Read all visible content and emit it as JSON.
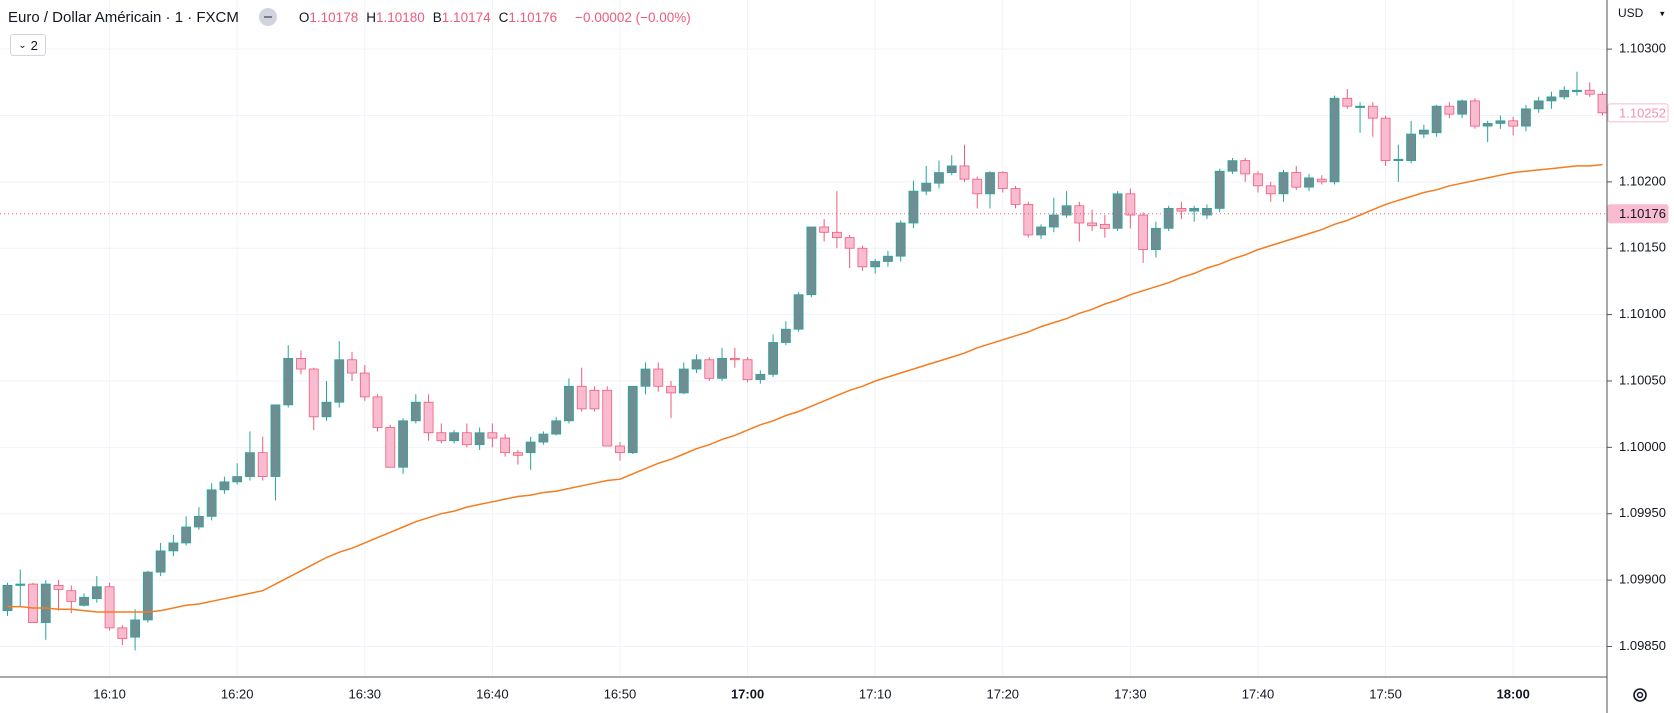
{
  "header": {
    "symbol": "Euro / Dollar Américain · 1 · FXCM",
    "ohlc": [
      {
        "label": "O",
        "value": "1.10178"
      },
      {
        "label": "H",
        "value": "1.10180"
      },
      {
        "label": "B",
        "value": "1.10174"
      },
      {
        "label": "C",
        "value": "1.10176"
      }
    ],
    "change": "−0.00002 (−0.00%)",
    "indicators": "2"
  },
  "chart_data": {
    "type": "candlestick",
    "currency": "USD",
    "categories": [
      null,
      null,
      null,
      null,
      null,
      null,
      null,
      null,
      "16:10",
      null,
      null,
      null,
      null,
      null,
      null,
      null,
      null,
      null,
      "16:20",
      null,
      null,
      null,
      null,
      null,
      null,
      null,
      null,
      null,
      "16:30",
      null,
      null,
      null,
      null,
      null,
      null,
      null,
      null,
      null,
      "16:40",
      null,
      null,
      null,
      null,
      null,
      null,
      null,
      null,
      null,
      "16:50",
      null,
      null,
      null,
      null,
      null,
      null,
      null,
      null,
      null,
      "17:00",
      null,
      null,
      null,
      null,
      null,
      null,
      null,
      null,
      null,
      "17:10",
      null,
      null,
      null,
      null,
      null,
      null,
      null,
      null,
      null,
      "17:20",
      null,
      null,
      null,
      null,
      null,
      null,
      null,
      null,
      null,
      "17:30",
      null,
      null,
      null,
      null,
      null,
      null,
      null,
      null,
      null,
      "17:40",
      null,
      null,
      null,
      null,
      null,
      null,
      null,
      null,
      null,
      "17:50",
      null,
      null,
      null,
      null,
      null,
      null,
      null,
      null,
      null,
      "18:00",
      null,
      null,
      null,
      null,
      null,
      null,
      null
    ],
    "open": [
      1.09877,
      1.09896,
      1.09897,
      1.09868,
      1.09896,
      1.09892,
      1.09881,
      1.09886,
      1.09895,
      1.09864,
      1.09857,
      1.0987,
      1.09906,
      1.09922,
      1.09928,
      1.0994,
      1.09948,
      1.09968,
      1.09974,
      1.09978,
      1.09996,
      1.09978,
      1.10032,
      1.10067,
      1.10059,
      1.10023,
      1.10034,
      1.10066,
      1.10056,
      1.10038,
      1.10015,
      1.09985,
      1.1002,
      1.10034,
      1.10011,
      1.10005,
      1.10011,
      1.10002,
      1.10011,
      1.10007,
      1.09996,
      1.09996,
      1.10004,
      1.1001,
      1.1002,
      1.10046,
      1.10043,
      1.10043,
      1.10001,
      1.09996,
      1.10046,
      1.10059,
      1.10046,
      1.10041,
      1.10059,
      1.10066,
      1.10052,
      1.10067,
      1.10066,
      1.10051,
      1.10055,
      1.10079,
      1.10089,
      1.10115,
      1.10166,
      1.10162,
      1.10158,
      1.1015,
      1.10136,
      1.1014,
      1.10144,
      1.10169,
      1.10193,
      1.10199,
      1.10207,
      1.10212,
      1.10202,
      1.10191,
      1.10207,
      1.10195,
      1.10183,
      1.1016,
      1.10166,
      1.10175,
      1.10182,
      1.10169,
      1.10168,
      1.10165,
      1.10191,
      1.10175,
      1.10149,
      1.10165,
      1.1018,
      1.10178,
      1.10175,
      1.1018,
      1.10208,
      1.10216,
      1.10206,
      1.10197,
      1.10191,
      1.10207,
      1.10196,
      1.10202,
      1.102,
      1.10263,
      1.10256,
      1.10257,
      1.10248,
      1.10216,
      1.10216,
      1.10236,
      1.10237,
      1.10257,
      1.10251,
      1.10261,
      1.10242,
      1.10244,
      1.10246,
      1.10242,
      1.10255,
      1.10261,
      1.10264,
      1.10268,
      1.10269,
      1.10266
    ],
    "high": [
      1.09898,
      1.09908,
      1.09898,
      1.099,
      1.099,
      1.09896,
      1.0989,
      1.09903,
      1.09898,
      1.09866,
      1.09878,
      1.09907,
      1.09928,
      1.09934,
      1.09948,
      1.09955,
      1.09973,
      1.09978,
      1.09988,
      1.10012,
      1.10008,
      1.10032,
      1.10077,
      1.10073,
      1.1006,
      1.1005,
      1.1008,
      1.10072,
      1.10062,
      1.1004,
      1.10017,
      1.10022,
      1.1004,
      1.1004,
      1.10018,
      1.10013,
      1.10018,
      1.10015,
      1.10018,
      1.1001,
      1.09998,
      1.10008,
      1.10012,
      1.10023,
      1.10052,
      1.1006,
      1.10046,
      1.10046,
      1.10004,
      1.10046,
      1.10064,
      1.10064,
      1.1005,
      1.10064,
      1.1007,
      1.10068,
      1.10075,
      1.10075,
      1.10068,
      1.10058,
      1.10085,
      1.10095,
      1.10117,
      1.10166,
      1.10172,
      1.10193,
      1.1016,
      1.10152,
      1.10142,
      1.10148,
      1.10171,
      1.10201,
      1.10212,
      1.10216,
      1.1022,
      1.10228,
      1.10204,
      1.10208,
      1.10208,
      1.10197,
      1.10185,
      1.10168,
      1.10188,
      1.10193,
      1.10185,
      1.10179,
      1.10175,
      1.10193,
      1.10195,
      1.10177,
      1.1017,
      1.10182,
      1.10185,
      1.10182,
      1.10183,
      1.1021,
      1.10218,
      1.10218,
      1.10208,
      1.102,
      1.10209,
      1.10212,
      1.10206,
      1.10205,
      1.10265,
      1.1027,
      1.1026,
      1.1026,
      1.1025,
      1.10228,
      1.10246,
      1.10243,
      1.10258,
      1.1026,
      1.10262,
      1.10263,
      1.10246,
      1.1025,
      1.10249,
      1.10258,
      1.10264,
      1.10268,
      1.10272,
      1.10283,
      1.10275,
      1.10268
    ],
    "low": [
      1.09873,
      1.0988,
      1.09868,
      1.09855,
      1.09877,
      1.09875,
      1.0988,
      1.09883,
      1.09862,
      1.09851,
      1.09847,
      1.09868,
      1.09903,
      1.09918,
      1.09926,
      1.09938,
      1.09945,
      1.09965,
      1.09972,
      1.09975,
      1.09975,
      1.0996,
      1.1003,
      1.10055,
      1.10013,
      1.1002,
      1.1003,
      1.1005,
      1.10035,
      1.10012,
      1.09985,
      1.0998,
      1.10018,
      1.10005,
      1.10003,
      1.10003,
      1.1,
      1.09998,
      1.1,
      1.09993,
      1.09987,
      1.09983,
      1.10002,
      1.10009,
      1.10018,
      1.10027,
      1.10027,
      1.10001,
      1.0999,
      1.09995,
      1.1004,
      1.10042,
      1.10022,
      1.1004,
      1.10056,
      1.1005,
      1.1005,
      1.1006,
      1.10049,
      1.10048,
      1.10053,
      1.10077,
      1.10087,
      1.10113,
      1.10155,
      1.1015,
      1.10135,
      1.10133,
      1.10131,
      1.10136,
      1.1014,
      1.10165,
      1.1019,
      1.10195,
      1.10205,
      1.102,
      1.1018,
      1.1018,
      1.10192,
      1.1018,
      1.10158,
      1.10157,
      1.10162,
      1.10173,
      1.10155,
      1.10163,
      1.10158,
      1.10163,
      1.10165,
      1.10139,
      1.10143,
      1.10163,
      1.10172,
      1.1017,
      1.10172,
      1.10177,
      1.10206,
      1.102,
      1.10192,
      1.10185,
      1.10185,
      1.10194,
      1.10193,
      1.10198,
      1.10198,
      1.10255,
      1.10237,
      1.10234,
      1.10212,
      1.102,
      1.10214,
      1.10233,
      1.10234,
      1.10248,
      1.10248,
      1.1024,
      1.1023,
      1.1024,
      1.10235,
      1.10238,
      1.10252,
      1.10255,
      1.10262,
      1.10265,
      1.10264,
      1.1025
    ],
    "close": [
      1.09896,
      1.09897,
      1.09868,
      1.09897,
      1.09893,
      1.09884,
      1.09887,
      1.09895,
      1.09864,
      1.09856,
      1.0987,
      1.09906,
      1.09922,
      1.09928,
      1.0994,
      1.09948,
      1.09968,
      1.09974,
      1.09978,
      1.09996,
      1.09978,
      1.10032,
      1.10067,
      1.10059,
      1.10023,
      1.10034,
      1.10066,
      1.10056,
      1.10038,
      1.10015,
      1.09985,
      1.1002,
      1.10034,
      1.10011,
      1.10005,
      1.10011,
      1.10002,
      1.10011,
      1.10007,
      1.09996,
      1.09994,
      1.10004,
      1.1001,
      1.1002,
      1.10046,
      1.10029,
      1.10029,
      1.10001,
      1.09996,
      1.10046,
      1.10059,
      1.10046,
      1.10041,
      1.10059,
      1.10066,
      1.10052,
      1.10067,
      1.10066,
      1.10051,
      1.10055,
      1.10079,
      1.10089,
      1.10115,
      1.10166,
      1.10162,
      1.10158,
      1.1015,
      1.10136,
      1.1014,
      1.10144,
      1.10169,
      1.10193,
      1.10199,
      1.10207,
      1.10212,
      1.10202,
      1.10191,
      1.10207,
      1.10195,
      1.10183,
      1.1016,
      1.10166,
      1.10175,
      1.10182,
      1.10169,
      1.10167,
      1.10165,
      1.10191,
      1.10175,
      1.10149,
      1.10165,
      1.1018,
      1.10178,
      1.1018,
      1.1018,
      1.10208,
      1.10216,
      1.10206,
      1.10197,
      1.10191,
      1.10207,
      1.10196,
      1.10203,
      1.102,
      1.10263,
      1.10257,
      1.10257,
      1.10248,
      1.10216,
      1.10217,
      1.10236,
      1.10239,
      1.10257,
      1.10251,
      1.10261,
      1.10242,
      1.10244,
      1.10246,
      1.10242,
      1.10255,
      1.10261,
      1.10264,
      1.10269,
      1.10269,
      1.10266,
      1.10252
    ],
    "up_color": "#6f8e93",
    "up_border": "#26a69a",
    "down_color": "#f8bbd0",
    "down_border": "#ef5b7b",
    "moving_average": {
      "color": "#f57c1f",
      "values": [
        1.0988,
        1.0988,
        1.09879,
        1.09879,
        1.09878,
        1.09878,
        1.09877,
        1.09876,
        1.09876,
        1.09876,
        1.09876,
        1.09876,
        1.09877,
        1.09879,
        1.09881,
        1.09882,
        1.09884,
        1.09886,
        1.09888,
        1.0989,
        1.09892,
        1.09897,
        1.09902,
        1.09907,
        1.09912,
        1.09917,
        1.09921,
        1.09924,
        1.09928,
        1.09932,
        1.09936,
        1.0994,
        1.09944,
        1.09947,
        1.0995,
        1.09952,
        1.09955,
        1.09957,
        1.09959,
        1.09961,
        1.09963,
        1.09964,
        1.09966,
        1.09967,
        1.09969,
        1.09971,
        1.09973,
        1.09975,
        1.09976,
        1.0998,
        1.09984,
        1.09988,
        1.09991,
        1.09995,
        1.09999,
        1.10002,
        1.10006,
        1.10009,
        1.10013,
        1.10017,
        1.1002,
        1.10024,
        1.10027,
        1.10031,
        1.10035,
        1.10039,
        1.10043,
        1.10046,
        1.1005,
        1.10053,
        1.10056,
        1.10059,
        1.10062,
        1.10065,
        1.10068,
        1.10071,
        1.10075,
        1.10078,
        1.10081,
        1.10084,
        1.10087,
        1.10091,
        1.10094,
        1.10097,
        1.10101,
        1.10104,
        1.10108,
        1.10111,
        1.10115,
        1.10118,
        1.10121,
        1.10124,
        1.10128,
        1.10131,
        1.10135,
        1.10138,
        1.10142,
        1.10145,
        1.10149,
        1.10152,
        1.10155,
        1.10158,
        1.10161,
        1.10164,
        1.10168,
        1.10171,
        1.10175,
        1.10179,
        1.10183,
        1.10186,
        1.10189,
        1.10192,
        1.10194,
        1.10197,
        1.10199,
        1.10201,
        1.10203,
        1.10205,
        1.10207,
        1.10208,
        1.10209,
        1.1021,
        1.10211,
        1.10212,
        1.10212,
        1.10213
      ]
    },
    "ylim": [
      1.09827,
      1.10337
    ],
    "yticks": [
      {
        "value": 1.0985,
        "label": "1.09850"
      },
      {
        "value": 1.099,
        "label": "1.09900"
      },
      {
        "value": 1.0995,
        "label": "1.09950"
      },
      {
        "value": 1.1,
        "label": "1.10000"
      },
      {
        "value": 1.1005,
        "label": "1.10050"
      },
      {
        "value": 1.101,
        "label": "1.10100"
      },
      {
        "value": 1.1015,
        "label": "1.10150"
      },
      {
        "value": 1.102,
        "label": "1.10200"
      },
      {
        "value": 1.1025,
        "label": "1.10250"
      },
      {
        "value": 1.103,
        "label": "1.10300"
      }
    ],
    "price_labels": [
      {
        "value": 1.10252,
        "label": "1.10252"
      },
      {
        "value": 1.10176,
        "label": "1.10176"
      }
    ],
    "grid": true
  }
}
